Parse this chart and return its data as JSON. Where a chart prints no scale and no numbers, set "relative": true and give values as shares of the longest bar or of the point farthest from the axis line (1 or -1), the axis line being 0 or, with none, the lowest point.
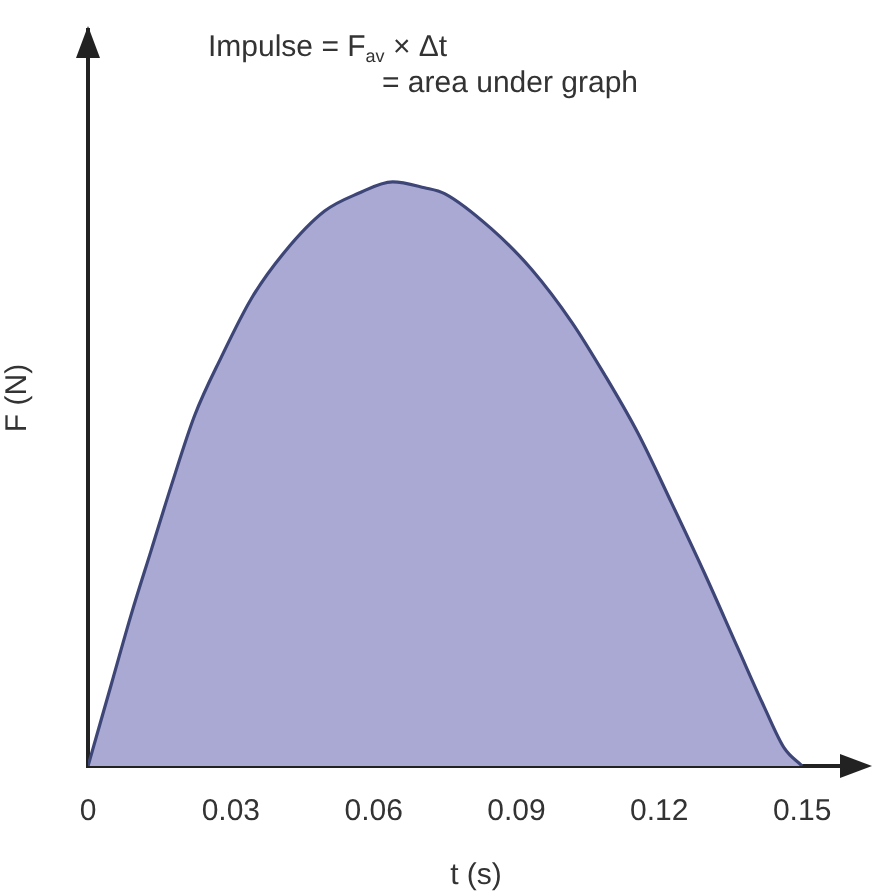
{
  "chart_data": {
    "type": "area",
    "xlabel": "t (s)",
    "ylabel": "F (N)",
    "annotations": [
      "Impulse = F$_{av}$ × Δt",
      "= area under graph"
    ],
    "x": [
      0,
      0.0007,
      0.0049,
      0.0091,
      0.0133,
      0.0175,
      0.0224,
      0.028,
      0.0343,
      0.0413,
      0.0497,
      0.0567,
      0.064,
      0.0707,
      0.0749,
      0.0847,
      0.0932,
      0.1016,
      0.1085,
      0.1155,
      0.1226,
      0.1295,
      0.1366,
      0.1421,
      0.1463,
      0.15
    ],
    "values": [
      0,
      0.02,
      0.14,
      0.26,
      0.37,
      0.48,
      0.6,
      0.7,
      0.8,
      0.88,
      0.95,
      0.98,
      1,
      0.99,
      0.98,
      0.92,
      0.85,
      0.76,
      0.67,
      0.57,
      0.45,
      0.33,
      0.2,
      0.1,
      0.03,
      0
    ],
    "color": "#aaa9d4",
    "relative": true,
    "xlim": [
      0,
      0.163
    ],
    "xticks": [
      0,
      0.03,
      0.06,
      0.09,
      0.12,
      0.15
    ]
  }
}
